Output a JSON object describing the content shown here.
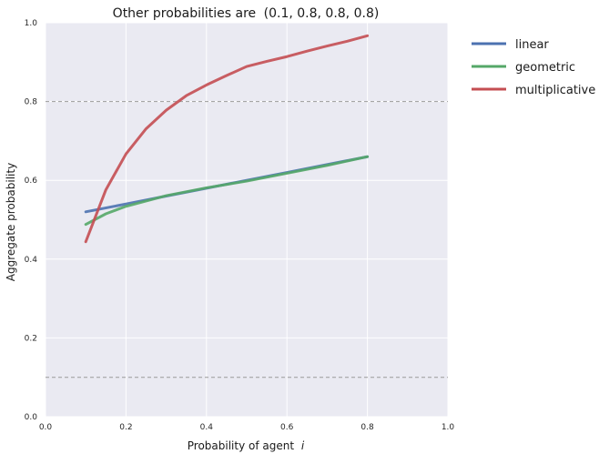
{
  "chart_data": {
    "type": "line",
    "title": "Other probabilities are (0.1, 0.8, 0.8, 0.8)",
    "xlabel": "Probability of agent i",
    "ylabel": "Aggregate probability",
    "xlim": [
      0.0,
      1.0
    ],
    "ylim": [
      0.0,
      1.0
    ],
    "xticks": [
      "0.0",
      "0.2",
      "0.4",
      "0.6",
      "0.8",
      "1.0"
    ],
    "yticks": [
      "0.0",
      "0.2",
      "0.4",
      "0.6",
      "0.8",
      "1.0"
    ],
    "grid": true,
    "background_color": "#EAEAF2",
    "reference_lines": [
      0.1,
      0.8
    ],
    "legend_position": "outside-right",
    "series": [
      {
        "name": "linear",
        "color": "#4C72B0",
        "x": [
          0.1,
          0.2,
          0.3,
          0.4,
          0.5,
          0.6,
          0.7,
          0.8
        ],
        "y": [
          0.52,
          0.54,
          0.56,
          0.58,
          0.6,
          0.62,
          0.64,
          0.66
        ]
      },
      {
        "name": "geometric",
        "color": "#55A868",
        "x": [
          0.1,
          0.15,
          0.2,
          0.3,
          0.4,
          0.5,
          0.6,
          0.7,
          0.8
        ],
        "y": [
          0.488,
          0.515,
          0.534,
          0.561,
          0.581,
          0.598,
          0.618,
          0.638,
          0.66
        ]
      },
      {
        "name": "multiplicative",
        "color": "#C44E52",
        "x": [
          0.1,
          0.15,
          0.2,
          0.25,
          0.3,
          0.35,
          0.4,
          0.45,
          0.5,
          0.55,
          0.6,
          0.65,
          0.7,
          0.75,
          0.8
        ],
        "y": [
          0.444,
          0.576,
          0.667,
          0.731,
          0.778,
          0.815,
          0.842,
          0.866,
          0.889,
          0.902,
          0.914,
          0.928,
          0.941,
          0.953,
          0.967
        ]
      }
    ]
  },
  "title_prefix": "Other probabilities are",
  "title_tuple": "(0.1, 0.8, 0.8, 0.8)",
  "xlabel_prefix": "Probability of agent",
  "xlabel_var": "i"
}
